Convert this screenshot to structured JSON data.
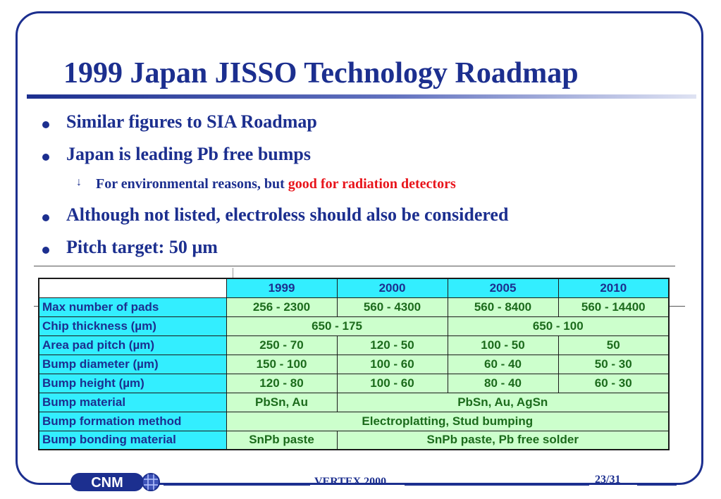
{
  "slide": {
    "title": "1999 Japan JISSO Technology Roadmap",
    "bullets": [
      {
        "text": "Similar figures to SIA Roadmap"
      },
      {
        "text": "Japan is leading Pb free bumps"
      },
      {
        "text": "Although not listed, electroless should also be considered"
      },
      {
        "text": "Pitch target: 50 µm"
      }
    ],
    "sub_bullet": {
      "prefix": "For environmental reasons, but ",
      "highlight": "good for radiation detectors"
    },
    "arrow_glyph": "↓"
  },
  "table": {
    "years": [
      "1999",
      "2000",
      "2005",
      "2010"
    ],
    "rows": [
      {
        "label": "Max number of pads",
        "cells": [
          "256 - 2300",
          "560 - 4300",
          "560 - 8400",
          "560 - 14400"
        ]
      },
      {
        "label": "Chip thickness (µm)",
        "cells": [
          "650 - 175",
          "650 - 100"
        ]
      },
      {
        "label": "Area pad pitch (µm)",
        "cells": [
          "250 - 70",
          "120 - 50",
          "100 - 50",
          "50"
        ]
      },
      {
        "label": "Bump diameter (µm)",
        "cells": [
          "150 - 100",
          "100 - 60",
          "60 - 40",
          "50 - 30"
        ]
      },
      {
        "label": "Bump height (µm)",
        "cells": [
          "120 - 80",
          "100 - 60",
          "80 - 40",
          "60 - 30"
        ]
      },
      {
        "label": "Bump material",
        "cells": [
          "PbSn, Au",
          "PbSn, Au, AgSn"
        ]
      },
      {
        "label": "Bump formation method",
        "cells": [
          "Electroplatting, Stud bumping"
        ]
      },
      {
        "label": "Bump bonding material",
        "cells": [
          "SnPb paste",
          "SnPb paste, Pb free solder"
        ]
      }
    ]
  },
  "footer": {
    "center": "VERTEX 2000",
    "page": "23/31",
    "logo_text": "CNM"
  },
  "colors": {
    "primary": "#1c2f8f",
    "highlight": "#e8141b",
    "header_fill": "#33eeff",
    "cell_fill": "#ccffcc",
    "cell_text": "#1c6b1c"
  }
}
